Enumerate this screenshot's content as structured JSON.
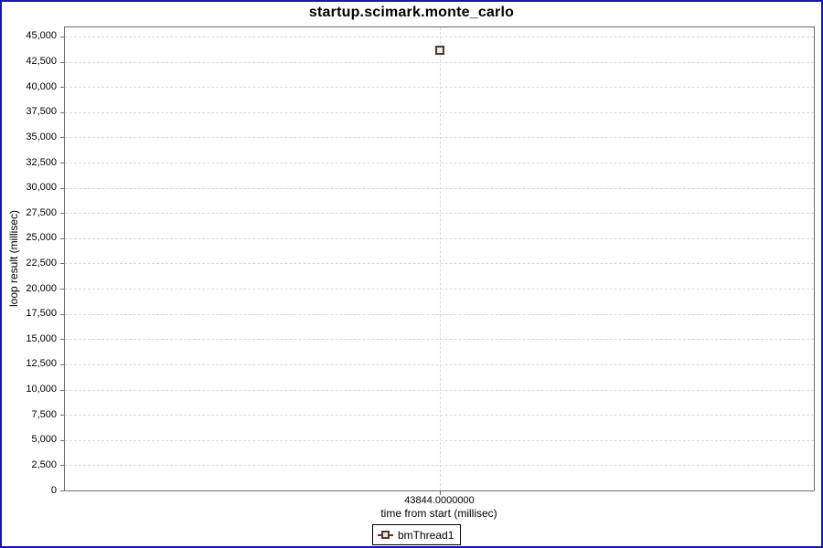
{
  "colors": {
    "window_border": "#1717ad",
    "plot_border": "#6e6e6e",
    "gridline": "#d9d9d9",
    "tick": "#6e6e6e",
    "marker_border": "#5f3232",
    "marker_fill": "#dff0df",
    "legend_border": "#000000",
    "text": "#000000"
  },
  "chart_data": {
    "type": "scatter",
    "title": "startup.scimark.monte_carlo",
    "xlabel": "time from start (millisec)",
    "ylabel": "loop result (millisec)",
    "xlim": [
      43843.5,
      43844.5
    ],
    "ylim": [
      0,
      45900
    ],
    "grid": "dashed",
    "legend_position": "bottom",
    "x_ticks": [
      {
        "value": 43844.0,
        "label": "43844.0000000"
      }
    ],
    "y_ticks": [
      {
        "value": 0,
        "label": "0"
      },
      {
        "value": 2500,
        "label": "2,500"
      },
      {
        "value": 5000,
        "label": "5,000"
      },
      {
        "value": 7500,
        "label": "7,500"
      },
      {
        "value": 10000,
        "label": "10,000"
      },
      {
        "value": 12500,
        "label": "12,500"
      },
      {
        "value": 15000,
        "label": "15,000"
      },
      {
        "value": 17500,
        "label": "17,500"
      },
      {
        "value": 20000,
        "label": "20,000"
      },
      {
        "value": 22500,
        "label": "22,500"
      },
      {
        "value": 25000,
        "label": "25,000"
      },
      {
        "value": 27500,
        "label": "27,500"
      },
      {
        "value": 30000,
        "label": "30,000"
      },
      {
        "value": 32500,
        "label": "32,500"
      },
      {
        "value": 35000,
        "label": "35,000"
      },
      {
        "value": 37500,
        "label": "37,500"
      },
      {
        "value": 40000,
        "label": "40,000"
      },
      {
        "value": 42500,
        "label": "42,500"
      },
      {
        "value": 45000,
        "label": "45,000"
      }
    ],
    "series": [
      {
        "name": "bmThread1",
        "marker": "square",
        "marker_border_color": "#5f3232",
        "marker_fill_color": "#dff0df",
        "points": [
          {
            "x": 43844.0,
            "y": 43600
          }
        ]
      }
    ]
  }
}
